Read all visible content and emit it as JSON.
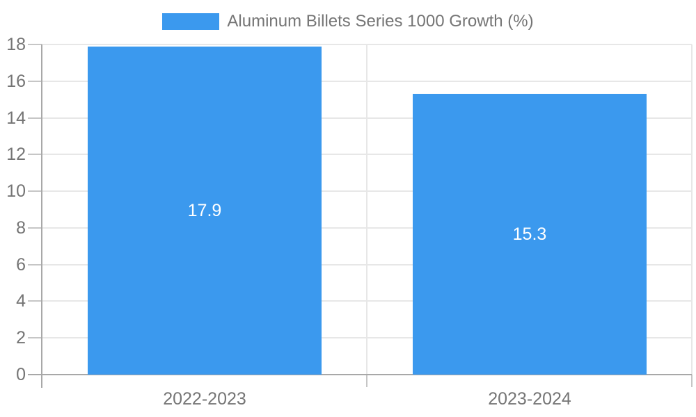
{
  "chart_data": {
    "type": "bar",
    "legend": "Aluminum Billets Series 1000 Growth (%)",
    "legend_position": "top-center",
    "categories": [
      "2022-2023",
      "2023-2024"
    ],
    "values": [
      17.9,
      15.3
    ],
    "value_labels": [
      "17.9",
      "15.3"
    ],
    "ylim": [
      0,
      18
    ],
    "ytick_step": 2,
    "ytick_labels": [
      "0",
      "2",
      "4",
      "6",
      "8",
      "10",
      "12",
      "14",
      "16",
      "18"
    ],
    "grid": true,
    "colors": {
      "bar": "#3b99ee",
      "grid": "#e7e7e7",
      "tick": "#c6c6c6",
      "axis": "#a8a8a8",
      "text": "#757575",
      "value_text": "#ffffff",
      "background": "#ffffff"
    }
  }
}
